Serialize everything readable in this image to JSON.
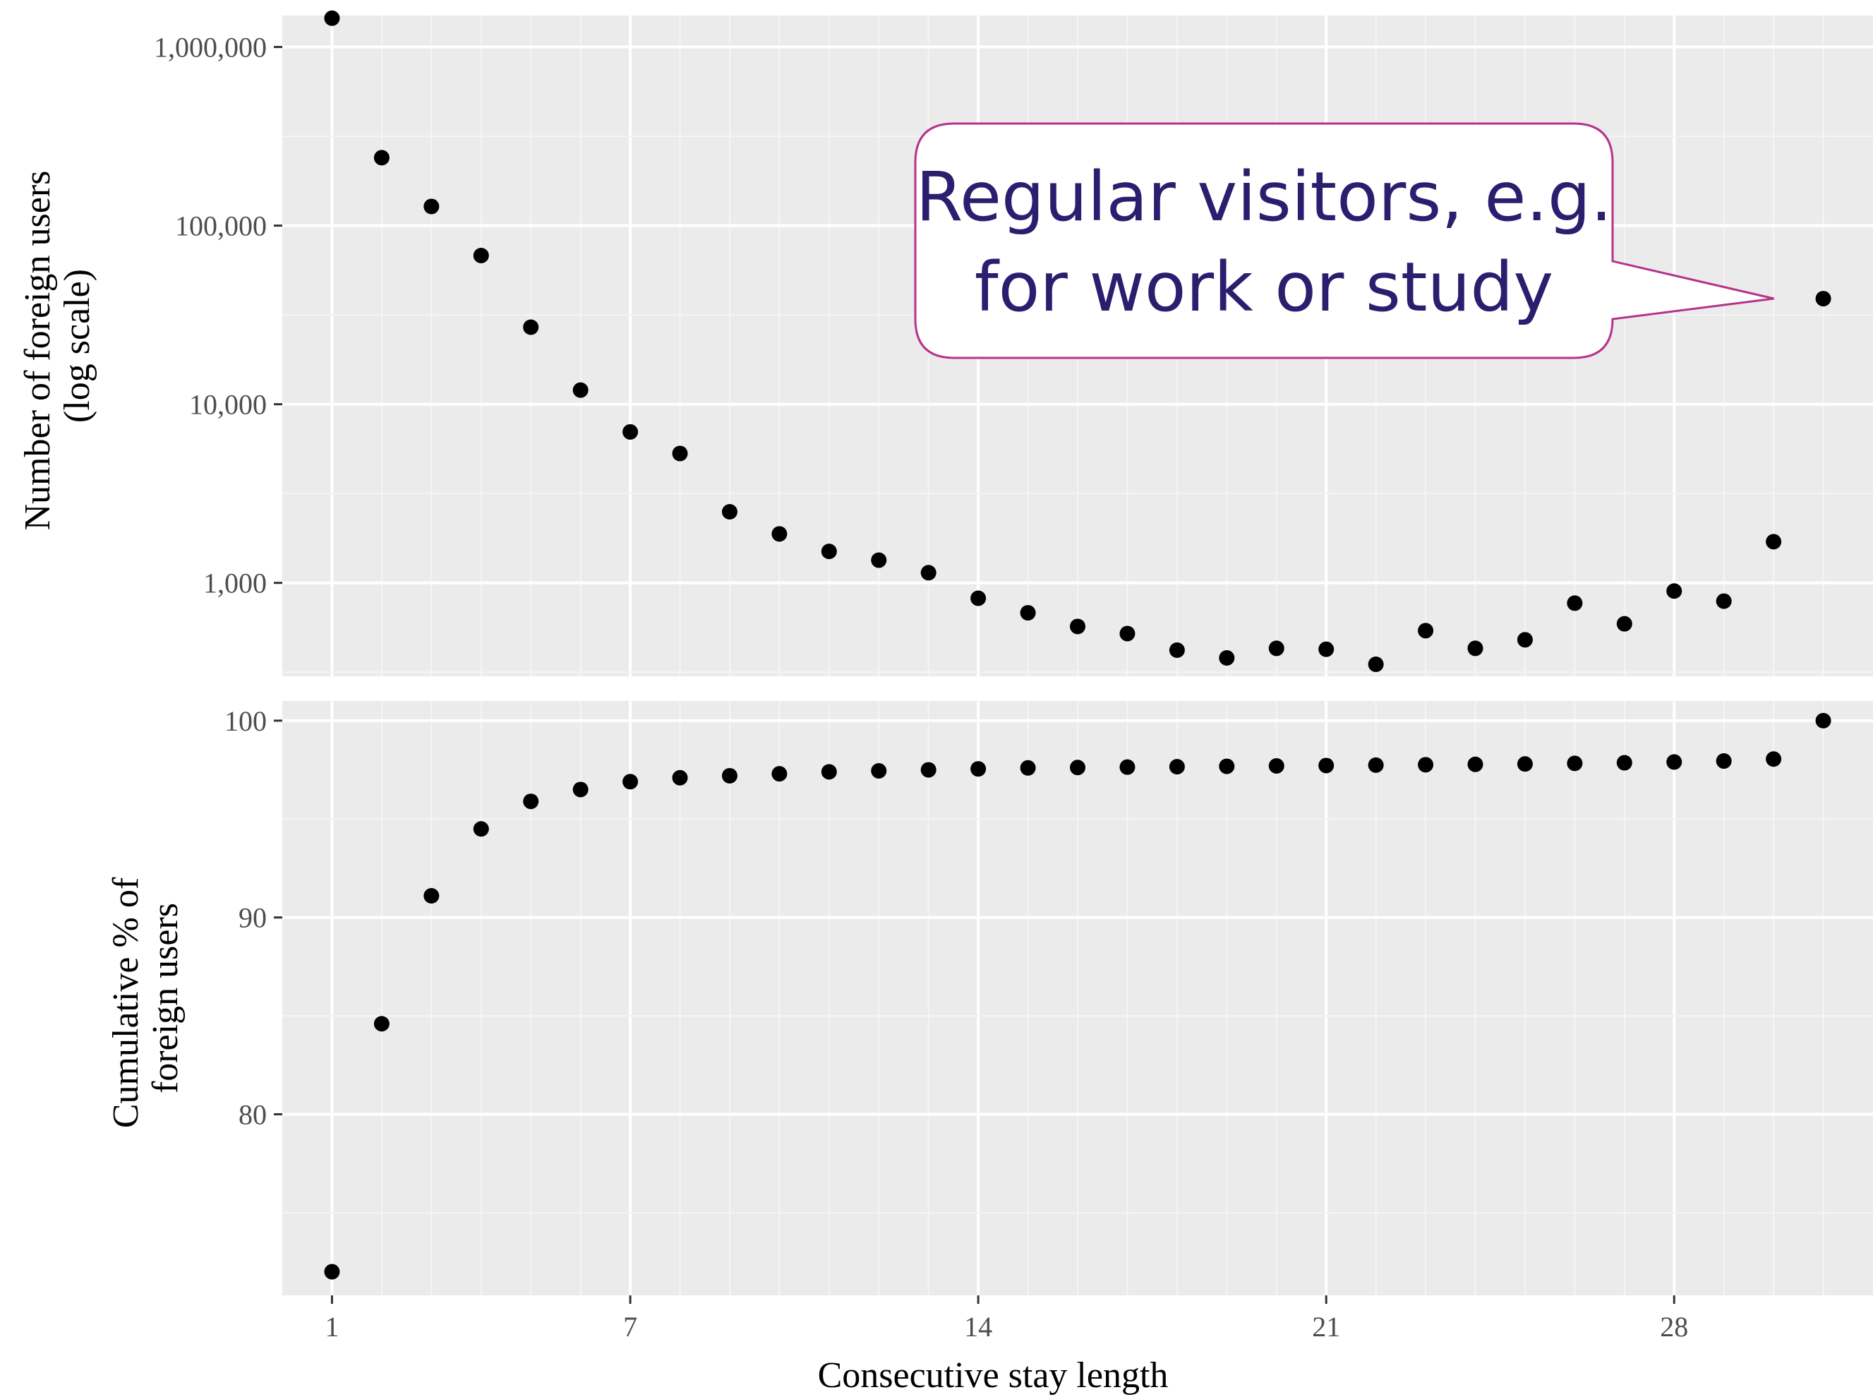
{
  "chart_data": [
    {
      "type": "scatter",
      "panel": "top",
      "ylabel_lines": [
        "Number of foreign users",
        "(log scale)"
      ],
      "yscale": "log",
      "ylim": [
        300,
        1500000
      ],
      "xlim": [
        0,
        32
      ],
      "y_ticks": [
        1000,
        10000,
        100000,
        1000000
      ],
      "y_tick_labels": [
        "1,000",
        "10,000",
        "100,000",
        "1,000,000"
      ],
      "x": [
        1,
        2,
        3,
        4,
        5,
        6,
        7,
        8,
        9,
        10,
        11,
        12,
        13,
        14,
        15,
        16,
        17,
        18,
        19,
        20,
        21,
        22,
        23,
        24,
        25,
        26,
        27,
        28,
        29,
        30,
        31
      ],
      "y": [
        1450000,
        240000,
        128000,
        68000,
        27000,
        12000,
        7000,
        5300,
        2500,
        1880,
        1500,
        1340,
        1140,
        820,
        680,
        570,
        520,
        420,
        380,
        430,
        425,
        350,
        540,
        430,
        480,
        770,
        590,
        900,
        790,
        1700,
        39000
      ],
      "point_color": "#000000",
      "annotation": {
        "lines": [
          "Regular visitors, e.g.",
          "for work or study"
        ],
        "points_to_x": 31,
        "text_color": "#2a1f6e",
        "border_color": "#b5338a",
        "fill": "#ffffff"
      }
    },
    {
      "type": "scatter",
      "panel": "bottom",
      "ylabel_lines": [
        "Cumulative % of",
        "foreign users"
      ],
      "ylim": [
        70.8,
        101
      ],
      "xlim": [
        0,
        32
      ],
      "y_ticks": [
        80,
        90,
        100
      ],
      "y_tick_labels": [
        "80",
        "90",
        "100"
      ],
      "x_ticks": [
        1,
        7,
        14,
        21,
        28
      ],
      "x_tick_labels": [
        "1",
        "7",
        "14",
        "21",
        "28"
      ],
      "xlabel": "Consecutive stay length",
      "x": [
        1,
        2,
        3,
        4,
        5,
        6,
        7,
        8,
        9,
        10,
        11,
        12,
        13,
        14,
        15,
        16,
        17,
        18,
        19,
        20,
        21,
        22,
        23,
        24,
        25,
        26,
        27,
        28,
        29,
        30,
        31
      ],
      "y": [
        72.0,
        84.6,
        91.1,
        94.5,
        95.9,
        96.5,
        96.9,
        97.1,
        97.2,
        97.3,
        97.4,
        97.45,
        97.5,
        97.55,
        97.6,
        97.62,
        97.64,
        97.66,
        97.68,
        97.7,
        97.72,
        97.74,
        97.76,
        97.78,
        97.8,
        97.83,
        97.86,
        97.9,
        97.95,
        98.05,
        100.0
      ],
      "point_color": "#000000"
    }
  ],
  "style": {
    "panel_background": "#ebebeb",
    "grid_major": "#ffffff",
    "grid_minor": "#f5f5f5",
    "tick_color": "#333333"
  }
}
